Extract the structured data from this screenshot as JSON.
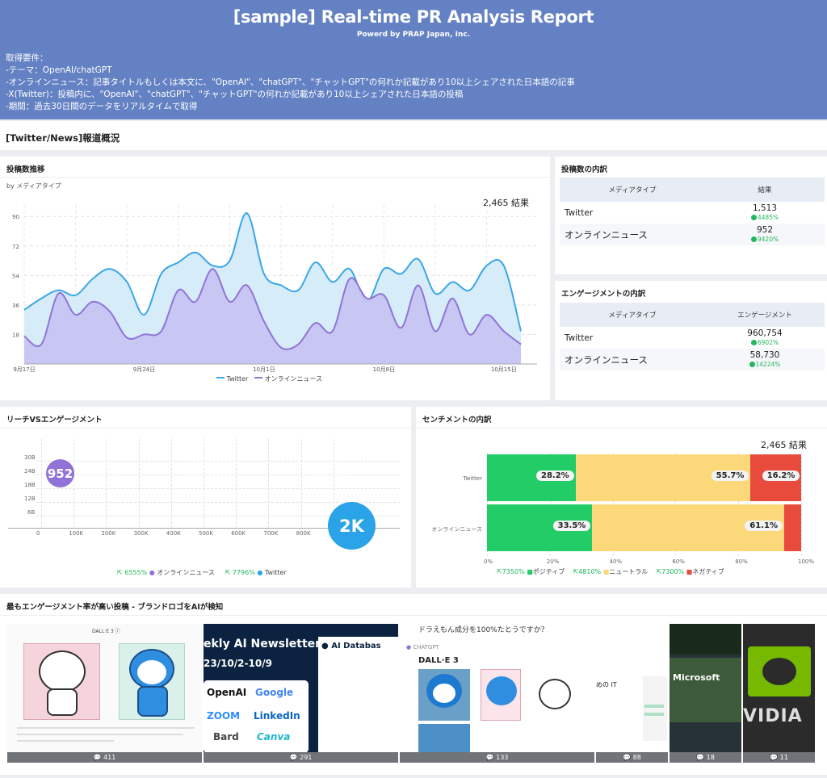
{
  "header": {
    "title": "[sample] Real-time PR Analysis Report",
    "subtitle": "Powerd by PRAP Japan, Inc.",
    "requirements": [
      "取得要件：",
      "-テーマ：OpenAI/chatGPT",
      "-オンラインニュース：記事タイトルもしくは本文に、\"OpenAI\"、\"chatGPT\"、\"チャットGPT\"の何れか記載があり10以上シェアされた日本語の記事",
      "-X(Twitter)：投稿内に、\"OpenAI\"、\"chatGPT\"、\"チャットGPT\"の何れか記載があり10以上シェアされた日本語の投稿",
      "-期間：過去30日間のデータをリアルタイムで取得"
    ]
  },
  "section_title": "[Twitter/News]報道概況",
  "posts_trend": {
    "title": "投稿数推移",
    "by_label": "by メディアタイプ",
    "total": "2,465 結果",
    "chart_data": {
      "type": "area",
      "x": [
        "9月17日",
        "9月18日",
        "9月19日",
        "9月20日",
        "9月21日",
        "9月22日",
        "9月23日",
        "9月24日",
        "9月25日",
        "9月26日",
        "9月27日",
        "9月28日",
        "9月29日",
        "9月30日",
        "10月1日",
        "10月2日",
        "10月3日",
        "10月4日",
        "10月5日",
        "10月6日",
        "10月7日",
        "10月8日",
        "10月9日",
        "10月10日",
        "10月11日",
        "10月12日",
        "10月13日",
        "10月14日",
        "10月15日",
        "10月16日"
      ],
      "x_tick_labels": [
        "9月17日",
        "9月24日",
        "10月1日",
        "10月8日",
        "10月15日"
      ],
      "y_ticks": [
        18,
        36,
        54,
        72,
        90
      ],
      "ylim": [
        0,
        97
      ],
      "series": [
        {
          "name": "Twitter",
          "color": "#3aa6e8",
          "values": [
            33,
            40,
            45,
            42,
            52,
            58,
            50,
            30,
            55,
            62,
            68,
            60,
            63,
            92,
            55,
            48,
            45,
            62,
            50,
            58,
            38,
            58,
            55,
            64,
            43,
            50,
            45,
            60,
            60,
            20
          ]
        },
        {
          "name": "オンラインニュース",
          "color": "#9173d8",
          "values": [
            17,
            12,
            43,
            30,
            38,
            32,
            16,
            18,
            20,
            45,
            38,
            58,
            38,
            48,
            26,
            10,
            12,
            25,
            20,
            52,
            40,
            42,
            22,
            48,
            20,
            40,
            18,
            30,
            20,
            12
          ]
        }
      ]
    }
  },
  "post_breakdown": {
    "title": "投稿数の内訳",
    "col_media": "メディアタイプ",
    "col_result": "結果",
    "rows": [
      {
        "name": "Twitter",
        "value": "1,513",
        "pct": "4485%"
      },
      {
        "name": "オンラインニュース",
        "value": "952",
        "pct": "9420%"
      }
    ]
  },
  "engagement_breakdown": {
    "title": "エンゲージメントの内訳",
    "col_media": "メディアタイプ",
    "col_result": "エンゲージメント",
    "rows": [
      {
        "name": "Twitter",
        "value": "960,754",
        "pct": "6902%"
      },
      {
        "name": "オンラインニュース",
        "value": "58,730",
        "pct": "14224%"
      }
    ]
  },
  "reach": {
    "title": "リーチVSエンゲージメント",
    "x_ticks": [
      "0",
      "100K",
      "200K",
      "300K",
      "400K",
      "500K",
      "600K",
      "700K",
      "800K",
      "900K"
    ],
    "y_ticks": [
      "6B",
      "12B",
      "18B",
      "24B",
      "30B"
    ],
    "bubbles": [
      {
        "label": "952",
        "color": "#9173d8"
      },
      {
        "label": "2K",
        "color": "#2aa3e8"
      }
    ],
    "legend": [
      {
        "pct": "6555%",
        "name": "オンラインニュース",
        "color": "#9173d8"
      },
      {
        "pct": "7796%",
        "name": "Twitter",
        "color": "#2aa3e8"
      }
    ]
  },
  "sentiment": {
    "title": "センチメントの内訳",
    "total": "2,465 結果",
    "chart_data": {
      "type": "bar",
      "orientation": "horizontal",
      "stacked": true,
      "categories": [
        "Twitter",
        "オンラインニュース"
      ],
      "series": [
        {
          "name": "ポジティブ",
          "color": "#22cc66",
          "values": [
            28.2,
            33.5
          ]
        },
        {
          "name": "ニュートラル",
          "color": "#fbd97a",
          "values": [
            55.7,
            61.1
          ]
        },
        {
          "name": "ネガティブ",
          "color": "#e84a3c",
          "values": [
            16.2,
            5.4
          ]
        }
      ],
      "value_labels": [
        [
          "28.2%",
          "55.7%",
          "16.2%"
        ],
        [
          "33.5%",
          "61.1%",
          ""
        ]
      ],
      "x_ticks": [
        "0%",
        "20%",
        "40%",
        "60%",
        "80%",
        "100%"
      ]
    },
    "legend_pcts": [
      "7350%",
      "4810%",
      "7300%"
    ]
  },
  "top_posts": {
    "title": "最もエンゲージメント率が高い投稿 - ブランドロゴをAIが検知",
    "items": [
      {
        "count": "411",
        "caption": "DALL·E 3 ⓘ"
      },
      {
        "count": "291",
        "caption": "ekly AI Newsletter",
        "date": "23/10/2-10/9",
        "logos": [
          "OpenAI",
          "Google",
          "ZOOM",
          "LinkedIn",
          "Bard",
          "Canva"
        ],
        "db": "AI Databas"
      },
      {
        "count": "133",
        "caption": "ドラえもん成分を100%たとうですか？",
        "brand": "CHATGPT",
        "model": "DALL·E 3"
      },
      {
        "count": "88",
        "caption": "めの IT"
      },
      {
        "count": "18",
        "caption": "Microsoft"
      },
      {
        "count": "11",
        "caption": "VIDIA"
      }
    ]
  }
}
